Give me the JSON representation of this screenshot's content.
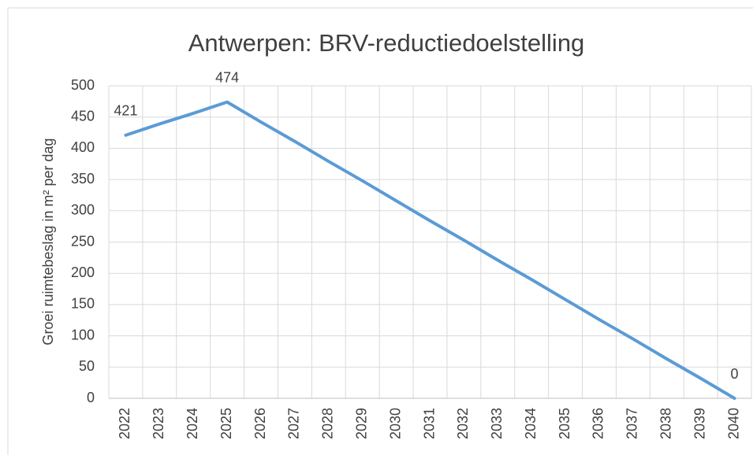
{
  "chart_data": {
    "type": "line",
    "title": "Antwerpen: BRV-reductiedoelstelling",
    "y_label": "Groei ruimtebeslag in m² per dag",
    "categories": [
      "2022",
      "2023",
      "2024",
      "2025",
      "2026",
      "2027",
      "2028",
      "2029",
      "2030",
      "2031",
      "2032",
      "2033",
      "2034",
      "2035",
      "2036",
      "2037",
      "2038",
      "2039",
      "2040"
    ],
    "series": [
      {
        "name": "Antwerpen",
        "color": "#5b9bd5",
        "values": [
          421,
          439,
          456,
          474,
          442,
          411,
          379,
          348,
          316,
          284,
          253,
          221,
          190,
          158,
          126,
          95,
          63,
          32,
          0
        ],
        "value_labels": [
          "421",
          null,
          null,
          "474",
          null,
          null,
          null,
          null,
          null,
          null,
          null,
          null,
          null,
          null,
          null,
          null,
          null,
          null,
          "0"
        ]
      }
    ],
    "ylim": [
      0,
      500
    ],
    "yticks": [
      0,
      50,
      100,
      150,
      200,
      250,
      300,
      350,
      400,
      450,
      500
    ],
    "grid": true
  }
}
